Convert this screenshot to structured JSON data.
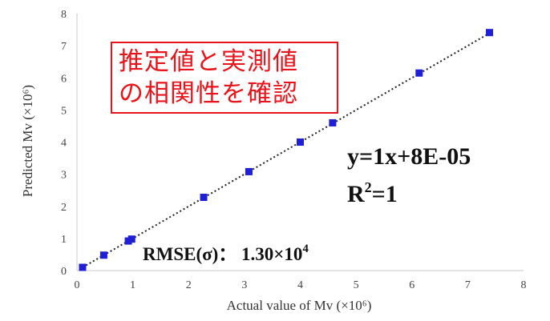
{
  "chart_data": {
    "type": "scatter",
    "xlabel": "Actual value of Mv (×10⁶)",
    "ylabel": "Predicted Mv (×10⁶)",
    "xlim": [
      0,
      8
    ],
    "ylim": [
      0,
      8
    ],
    "xticks": [
      "0",
      "1",
      "2",
      "3",
      "4",
      "5",
      "6",
      "7",
      "8"
    ],
    "yticks": [
      "0",
      "1",
      "2",
      "3",
      "4",
      "5",
      "6",
      "7",
      "8"
    ],
    "grid": false,
    "series": [
      {
        "marker": "square",
        "color": "#1f1fd6",
        "x": [
          0.1,
          0.48,
          0.92,
          0.98,
          2.27,
          3.08,
          4.0,
          4.58,
          6.13,
          7.39
        ],
        "y": [
          0.1,
          0.48,
          0.92,
          0.98,
          2.28,
          3.08,
          4.0,
          4.6,
          6.15,
          7.41
        ]
      }
    ],
    "trendline": {
      "style": "dotted",
      "color": "#222222",
      "slope": 1,
      "intercept": 8e-05,
      "x_range": [
        0.1,
        7.39
      ]
    },
    "annotations": {
      "equation": "y=1x+8E-05",
      "r2_base": "R",
      "r2_sup": "2",
      "r2_rest": "=1",
      "rmse_base": "RMSE(σ)：  1.30×10",
      "rmse_sup": "4"
    }
  },
  "note": {
    "line1": "推定値と実測値",
    "line2": "の相関性を確認",
    "color": "#e8141b"
  }
}
